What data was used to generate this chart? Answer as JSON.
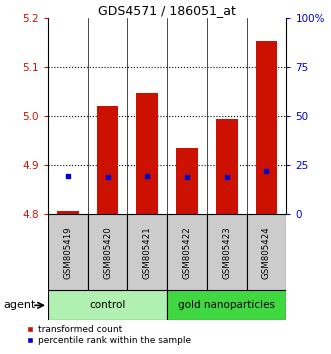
{
  "title": "GDS4571 / 186051_at",
  "samples": [
    "GSM805419",
    "GSM805420",
    "GSM805421",
    "GSM805422",
    "GSM805423",
    "GSM805424"
  ],
  "red_values": [
    4.806,
    5.02,
    5.047,
    4.935,
    4.993,
    5.153
  ],
  "blue_values": [
    4.877,
    4.876,
    4.878,
    4.876,
    4.876,
    4.888
  ],
  "ylim": [
    4.8,
    5.2
  ],
  "yticks_left": [
    4.8,
    4.9,
    5.0,
    5.1,
    5.2
  ],
  "yticks_right": [
    0,
    25,
    50,
    75,
    100
  ],
  "ytick_right_labels": [
    "0",
    "25",
    "50",
    "75",
    "100%"
  ],
  "group_labels": [
    "control",
    "gold nanoparticles"
  ],
  "group_colors": [
    "#b0f0b0",
    "#40d840"
  ],
  "group_ranges": [
    [
      -0.5,
      2.5
    ],
    [
      2.5,
      5.5
    ]
  ],
  "agent_label": "agent",
  "legend_red": "transformed count",
  "legend_blue": "percentile rank within the sample",
  "red_color": "#cc1100",
  "blue_color": "#0000cc",
  "bar_bottom": 4.8,
  "bar_width": 0.55,
  "grid_yticks": [
    4.9,
    5.0,
    5.1
  ],
  "sample_box_color": "#cccccc",
  "fig_bg": "#ffffff"
}
